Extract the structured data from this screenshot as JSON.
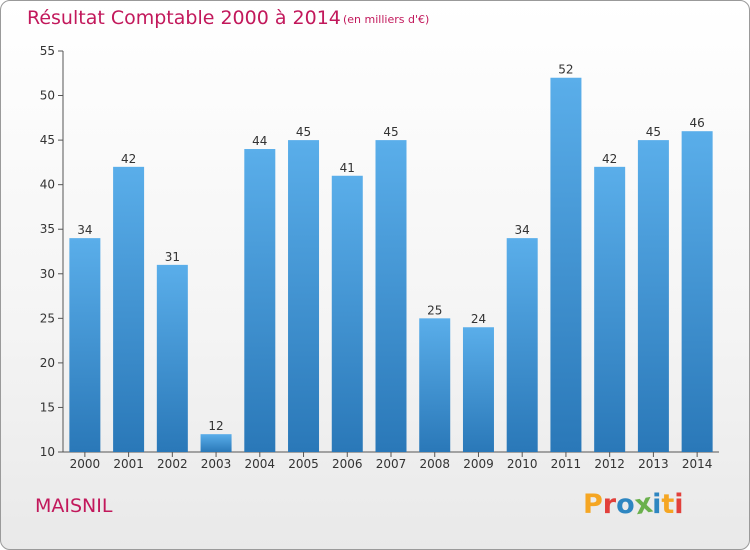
{
  "header": {
    "title": "Résultat Comptable 2000 à 2014",
    "subtitle": "(en milliers d'€)"
  },
  "footer": {
    "commune": "MAISNIL",
    "logo_text": "Proxiti"
  },
  "colors": {
    "title": "#c2185b",
    "bar_top": "#5aaeea",
    "bar_bottom": "#2a78b8",
    "logo_letters": [
      "#f5a623",
      "#e2403b",
      "#2e86c1",
      "#6ab04c",
      "#2e86c1",
      "#f5a623",
      "#e2403b"
    ]
  },
  "chart_data": {
    "type": "bar",
    "categories": [
      "2000",
      "2001",
      "2002",
      "2003",
      "2004",
      "2005",
      "2006",
      "2007",
      "2008",
      "2009",
      "2010",
      "2011",
      "2012",
      "2013",
      "2014"
    ],
    "values": [
      34,
      42,
      31,
      12,
      44,
      45,
      41,
      45,
      25,
      24,
      34,
      52,
      42,
      45,
      46
    ],
    "title": "Résultat Comptable 2000 à 2014",
    "xlabel": "",
    "ylabel": "",
    "ylim": [
      10,
      55
    ],
    "yticks": [
      10,
      15,
      20,
      25,
      30,
      35,
      40,
      45,
      50,
      55
    ],
    "grid": false,
    "data_labels": true
  }
}
